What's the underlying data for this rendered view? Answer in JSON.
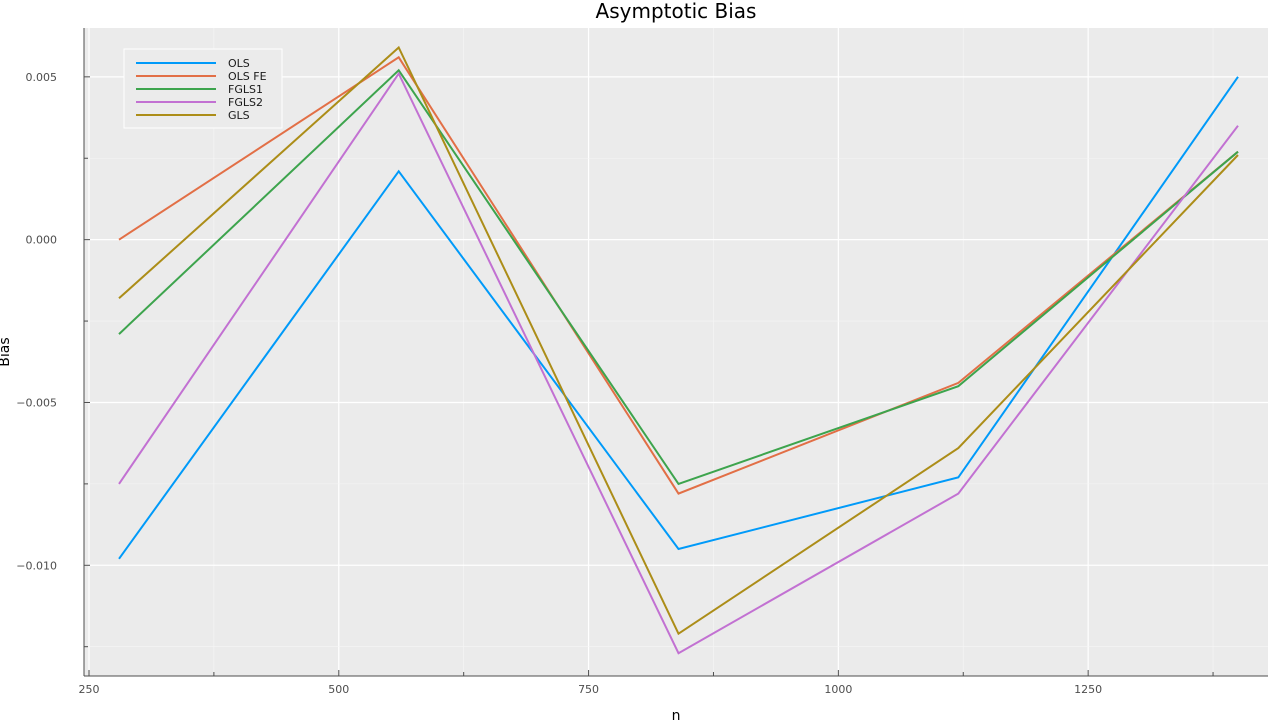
{
  "chart_data": {
    "type": "line",
    "title": "Asymptotic Bias",
    "xlabel": "n",
    "ylabel": "Bias",
    "x": [
      280,
      560,
      840,
      1120,
      1400
    ],
    "xlim": [
      245,
      1430
    ],
    "ylim": [
      -0.0134,
      0.0065
    ],
    "x_ticks": [
      250,
      500,
      750,
      1000,
      1250
    ],
    "x_tick_labels": [
      "250",
      "500",
      "750",
      "1000",
      "1250"
    ],
    "x_minor_ticks": [
      375,
      625,
      875,
      1125,
      1375
    ],
    "y_ticks": [
      0.005,
      0.0,
      -0.005,
      -0.01
    ],
    "y_tick_labels": [
      "0.005",
      "0.000",
      "−0.005",
      "−0.010"
    ],
    "y_minor_ticks": [
      0.0025,
      -0.0025,
      -0.0075,
      -0.0125
    ],
    "grid": true,
    "background": "#ebebeb",
    "legend_position": "top-left",
    "series": [
      {
        "name": "OLS",
        "color": "#009af9",
        "values": [
          -0.0098,
          0.0021,
          -0.0095,
          -0.0073,
          0.005
        ]
      },
      {
        "name": "OLS FE",
        "color": "#e26f46",
        "values": [
          0.0,
          0.0056,
          -0.0078,
          -0.0044,
          0.0027
        ]
      },
      {
        "name": "FGLS1",
        "color": "#3da44d",
        "values": [
          -0.0029,
          0.0052,
          -0.0075,
          -0.0045,
          0.0027
        ]
      },
      {
        "name": "FGLS2",
        "color": "#c271d2",
        "values": [
          -0.0075,
          0.0051,
          -0.0127,
          -0.0078,
          0.0035
        ]
      },
      {
        "name": "GLS",
        "color": "#ac8d18",
        "values": [
          -0.0018,
          0.0059,
          -0.0121,
          -0.0064,
          0.0026
        ]
      }
    ]
  }
}
